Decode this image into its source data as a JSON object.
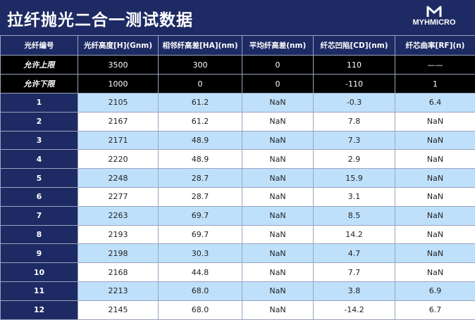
{
  "header": {
    "title": "拉纤抛光二合一测试数据",
    "logo": "MYHMICRO"
  },
  "table": {
    "columns": [
      "光纤编号",
      "光纤高度[H](Gnm)",
      "相邻纤高差[HA](nm)",
      "平均纤高差(nm)",
      "纤芯凹陷[CD](nm)",
      "纤芯曲率[RF](n)"
    ],
    "limits": [
      [
        "允许上限",
        "3500",
        "300",
        "0",
        "110",
        "——"
      ],
      [
        "允许下限",
        "1000",
        "0",
        "0",
        "-110",
        "1"
      ]
    ],
    "rows": [
      [
        "1",
        "2105",
        "61.2",
        "NaN",
        "-0.3",
        "6.4"
      ],
      [
        "2",
        "2167",
        "61.2",
        "NaN",
        "7.8",
        "NaN"
      ],
      [
        "3",
        "2171",
        "48.9",
        "NaN",
        "7.3",
        "NaN"
      ],
      [
        "4",
        "2220",
        "48.9",
        "NaN",
        "2.9",
        "NaN"
      ],
      [
        "5",
        "2248",
        "28.7",
        "NaN",
        "15.9",
        "NaN"
      ],
      [
        "6",
        "2277",
        "28.7",
        "NaN",
        "3.1",
        "NaN"
      ],
      [
        "7",
        "2263",
        "69.7",
        "NaN",
        "8.5",
        "NaN"
      ],
      [
        "8",
        "2193",
        "69.7",
        "NaN",
        "14.2",
        "NaN"
      ],
      [
        "9",
        "2198",
        "30.3",
        "NaN",
        "4.7",
        "NaN"
      ],
      [
        "10",
        "2168",
        "44.8",
        "NaN",
        "7.7",
        "NaN"
      ],
      [
        "11",
        "2213",
        "68.0",
        "NaN",
        "3.8",
        "6.9"
      ],
      [
        "12",
        "2145",
        "68.0",
        "NaN",
        "-14.2",
        "6.7"
      ]
    ]
  }
}
